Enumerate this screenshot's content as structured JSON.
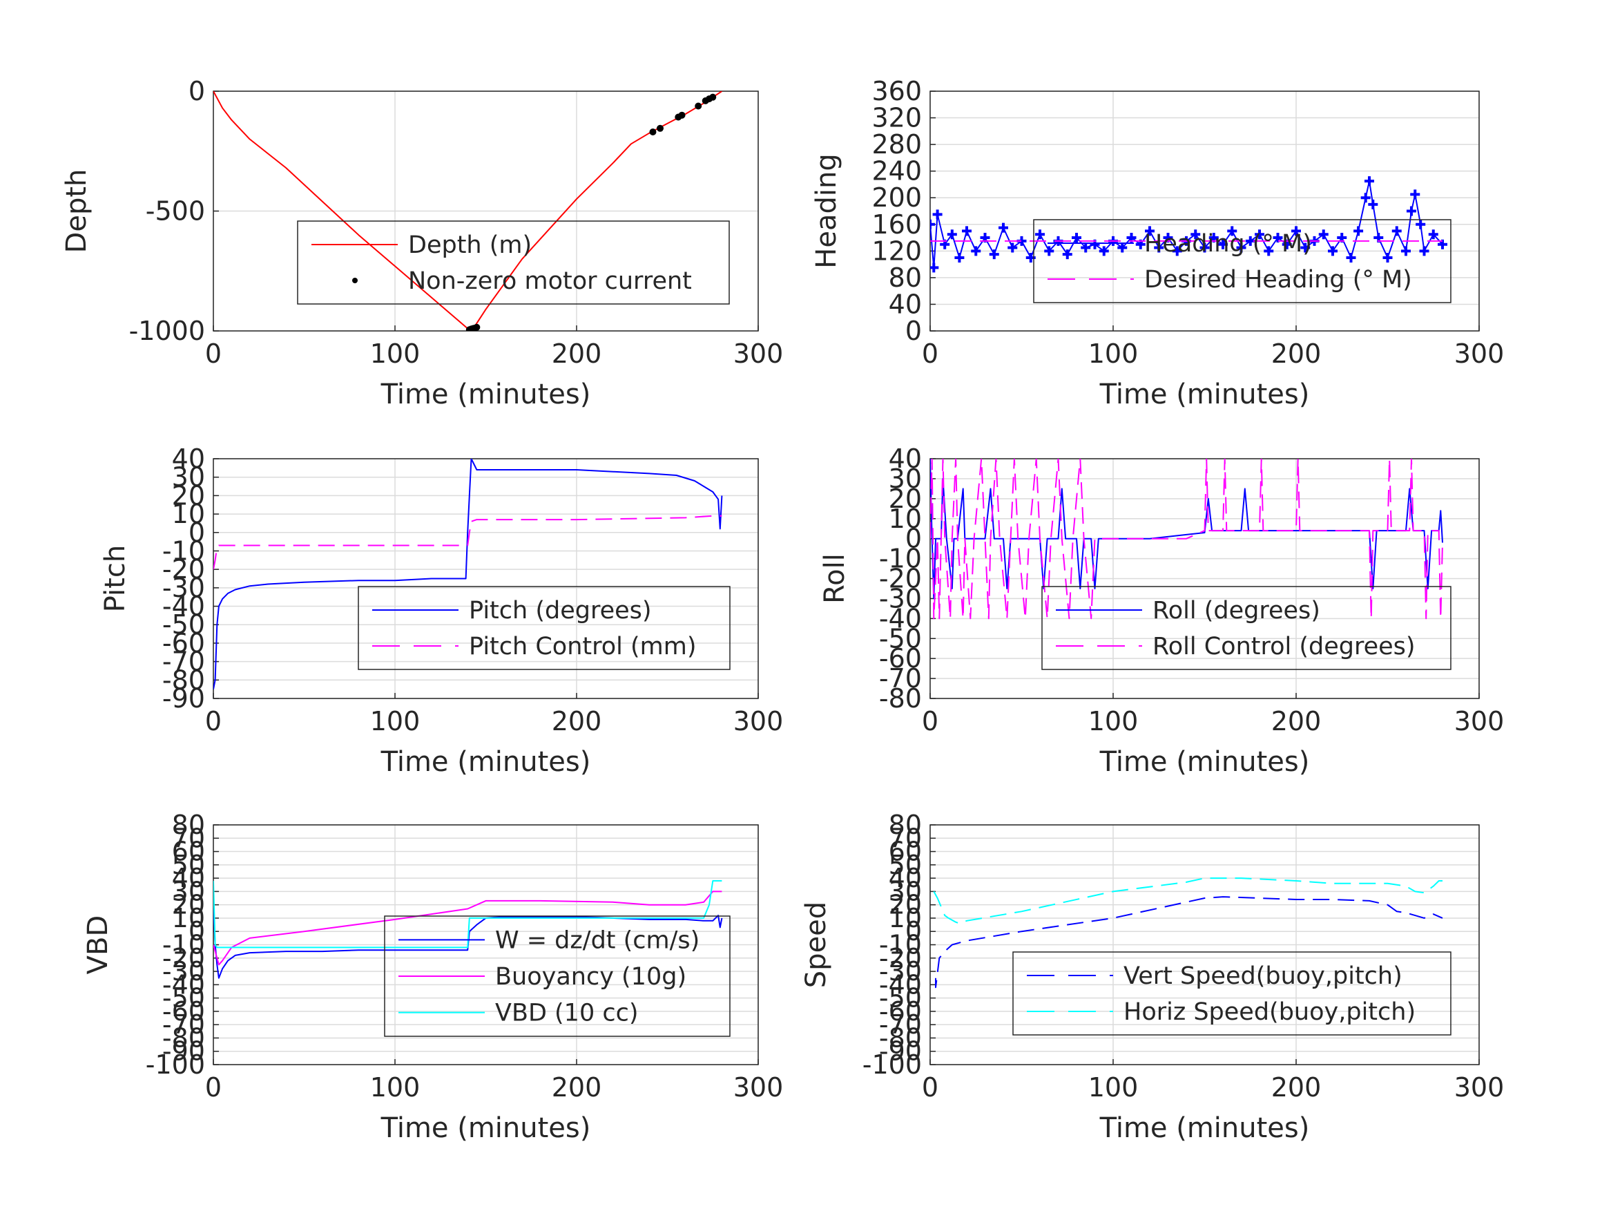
{
  "colors": {
    "red": "#ff0000",
    "magenta": "#ff00ff",
    "blue": "#0000ff",
    "cyan": "#00ffff",
    "black": "#000000",
    "grid": "#dbdbdb",
    "axis": "#262626"
  },
  "chart_data": [
    {
      "id": "depth",
      "type": "line",
      "xlabel": "Time (minutes)",
      "ylabel": "Depth",
      "xlim": [
        0,
        300
      ],
      "ylim": [
        -1000,
        0
      ],
      "xticks": [
        0,
        100,
        200,
        300
      ],
      "xticklabels": [
        "0",
        "100",
        "200",
        "300"
      ],
      "yticks": [
        0,
        -500,
        -1000
      ],
      "yticklabels": [
        "0",
        "-500",
        "-1000"
      ],
      "grid": true,
      "legend_position": "center-right",
      "series": [
        {
          "name": "Depth (m)",
          "style": "line",
          "color": "red",
          "x": [
            0,
            5,
            10,
            20,
            40,
            60,
            80,
            100,
            120,
            140,
            144,
            150,
            170,
            200,
            220,
            230,
            240,
            250,
            260,
            270,
            280
          ],
          "y": [
            0,
            -70,
            -120,
            -200,
            -320,
            -460,
            -600,
            -730,
            -860,
            -990,
            -980,
            -910,
            -700,
            -450,
            -300,
            -220,
            -175,
            -135,
            -95,
            -50,
            0
          ]
        },
        {
          "name": "Non-zero motor current",
          "style": "dots",
          "color": "black",
          "x": [
            141,
            142,
            143,
            144,
            145,
            242,
            246,
            256,
            258,
            267,
            271,
            273,
            275
          ],
          "y": [
            -995,
            -992,
            -990,
            -988,
            -985,
            -170,
            -155,
            -108,
            -100,
            -62,
            -40,
            -32,
            -25
          ]
        }
      ]
    },
    {
      "id": "heading",
      "type": "line",
      "xlabel": "Time (minutes)",
      "ylabel": "Heading",
      "xlim": [
        0,
        300
      ],
      "ylim": [
        0,
        360
      ],
      "xticks": [
        0,
        100,
        200,
        300
      ],
      "xticklabels": [
        "0",
        "100",
        "200",
        "300"
      ],
      "yticks": [
        0,
        40,
        80,
        120,
        160,
        200,
        240,
        280,
        320,
        360
      ],
      "yticklabels": [
        "0",
        "40",
        "80",
        "120",
        "160",
        "200",
        "240",
        "280",
        "320",
        "360"
      ],
      "grid": true,
      "legend_position": "center-right",
      "series": [
        {
          "name": "Heading (° M)",
          "style": "markers",
          "color": "blue",
          "x": [
            0,
            2,
            4,
            8,
            12,
            16,
            20,
            25,
            30,
            35,
            40,
            45,
            50,
            55,
            60,
            65,
            70,
            75,
            80,
            85,
            90,
            95,
            100,
            105,
            110,
            115,
            120,
            125,
            130,
            135,
            140,
            145,
            150,
            155,
            160,
            165,
            170,
            175,
            180,
            185,
            190,
            195,
            200,
            205,
            210,
            215,
            220,
            225,
            230,
            234,
            238,
            240,
            242,
            245,
            250,
            255,
            260,
            263,
            265,
            268,
            270,
            275,
            280
          ],
          "y": [
            160,
            95,
            175,
            130,
            145,
            110,
            150,
            120,
            140,
            115,
            155,
            125,
            135,
            110,
            145,
            120,
            135,
            115,
            140,
            125,
            130,
            120,
            135,
            125,
            140,
            130,
            150,
            125,
            140,
            120,
            135,
            145,
            125,
            140,
            130,
            150,
            125,
            135,
            145,
            120,
            140,
            130,
            150,
            125,
            135,
            145,
            120,
            140,
            110,
            150,
            200,
            225,
            190,
            140,
            110,
            150,
            120,
            180,
            205,
            160,
            120,
            145,
            130
          ]
        },
        {
          "name": "Desired Heading (° M)",
          "style": "dashed",
          "color": "magenta",
          "x": [
            0,
            280
          ],
          "y": [
            135,
            135
          ]
        }
      ]
    },
    {
      "id": "pitch",
      "type": "line",
      "xlabel": "Time (minutes)",
      "ylabel": "Pitch",
      "xlim": [
        0,
        300
      ],
      "ylim": [
        -90,
        40
      ],
      "xticks": [
        0,
        100,
        200,
        300
      ],
      "xticklabels": [
        "0",
        "100",
        "200",
        "300"
      ],
      "yticks": [
        40,
        30,
        20,
        10,
        0,
        -10,
        -20,
        -30,
        -40,
        -50,
        -60,
        -70,
        -80,
        -90
      ],
      "yticklabels": [
        "40",
        "30",
        "20",
        "10",
        "0",
        "-10",
        "-20",
        "-30",
        "-40",
        "-50",
        "-60",
        "-70",
        "-80",
        "-90"
      ],
      "grid": true,
      "legend_position": "lower-right",
      "series": [
        {
          "name": "Pitch (degrees)",
          "style": "line",
          "color": "blue",
          "x": [
            0,
            1,
            2,
            3,
            5,
            8,
            12,
            20,
            30,
            50,
            80,
            100,
            120,
            139,
            140,
            141,
            142,
            145,
            150,
            170,
            200,
            220,
            240,
            255,
            265,
            270,
            275,
            278,
            279,
            280
          ],
          "y": [
            -85,
            -80,
            -50,
            -40,
            -36,
            -33,
            -31,
            -29,
            -28,
            -27,
            -26,
            -26,
            -25,
            -25,
            0,
            20,
            40,
            34,
            34,
            34,
            34,
            33,
            32,
            31,
            28,
            25,
            22,
            18,
            2,
            20
          ]
        },
        {
          "name": "Pitch Control (mm)",
          "style": "dashed",
          "color": "magenta",
          "x": [
            0,
            1,
            2,
            3,
            5,
            140,
            141,
            142,
            145,
            200,
            260,
            275,
            280
          ],
          "y": [
            -20,
            -15,
            -8,
            -7,
            -7,
            -7,
            0,
            6,
            7,
            7,
            8,
            9,
            9
          ]
        }
      ]
    },
    {
      "id": "roll",
      "type": "line",
      "xlabel": "Time (minutes)",
      "ylabel": "Roll",
      "xlim": [
        0,
        300
      ],
      "ylim": [
        -80,
        40
      ],
      "xticks": [
        0,
        100,
        200,
        300
      ],
      "xticklabels": [
        "0",
        "100",
        "200",
        "300"
      ],
      "yticks": [
        40,
        30,
        20,
        10,
        0,
        -10,
        -20,
        -30,
        -40,
        -50,
        -60,
        -70,
        -80
      ],
      "yticklabels": [
        "40",
        "30",
        "20",
        "10",
        "0",
        "-10",
        "-20",
        "-30",
        "-40",
        "-50",
        "-60",
        "-70",
        "-80"
      ],
      "grid": true,
      "legend_position": "lower-right",
      "series": [
        {
          "name": "Roll (degrees)",
          "style": "line",
          "color": "blue",
          "x": [
            0,
            1,
            2,
            3,
            6,
            7,
            9,
            12,
            13,
            15,
            18,
            19,
            21,
            25,
            30,
            33,
            35,
            40,
            42,
            44,
            50,
            55,
            60,
            62,
            64,
            70,
            72,
            74,
            80,
            82,
            84,
            88,
            90,
            92,
            100,
            120,
            140,
            150,
            152,
            154,
            170,
            172,
            174,
            200,
            230,
            240,
            242,
            244,
            250,
            260,
            262,
            264,
            270,
            272,
            274,
            278,
            279,
            280
          ],
          "y": [
            40,
            0,
            -30,
            0,
            0,
            30,
            0,
            -25,
            0,
            0,
            25,
            0,
            0,
            0,
            0,
            25,
            0,
            0,
            -25,
            0,
            0,
            0,
            0,
            -25,
            0,
            0,
            25,
            0,
            0,
            -25,
            0,
            0,
            -25,
            0,
            0,
            0,
            2,
            3,
            20,
            4,
            4,
            25,
            4,
            4,
            4,
            4,
            -25,
            4,
            4,
            4,
            25,
            4,
            4,
            -25,
            4,
            4,
            14,
            -2
          ]
        },
        {
          "name": "Roll Control (degrees)",
          "style": "dashed",
          "color": "magenta",
          "x": [
            0,
            1,
            2,
            4,
            5,
            7,
            8,
            11,
            12,
            14,
            15,
            18,
            19,
            22,
            24,
            28,
            30,
            32,
            33,
            36,
            38,
            42,
            44,
            46,
            48,
            52,
            54,
            58,
            60,
            64,
            66,
            70,
            72,
            76,
            78,
            82,
            84,
            88,
            90,
            92,
            100,
            120,
            140,
            150,
            151,
            152,
            160,
            161,
            162,
            180,
            181,
            182,
            200,
            201,
            202,
            230,
            240,
            241,
            242,
            250,
            251,
            252,
            262,
            263,
            264,
            270,
            271,
            272,
            278,
            279,
            280
          ],
          "y": [
            0,
            40,
            -40,
            0,
            -40,
            40,
            0,
            -40,
            0,
            40,
            0,
            -40,
            0,
            -40,
            0,
            40,
            0,
            -40,
            0,
            40,
            0,
            -40,
            0,
            40,
            0,
            -40,
            0,
            40,
            0,
            -40,
            0,
            40,
            0,
            -40,
            0,
            40,
            0,
            -40,
            0,
            0,
            0,
            0,
            0,
            4,
            40,
            4,
            4,
            40,
            4,
            4,
            40,
            4,
            4,
            40,
            4,
            4,
            4,
            -40,
            4,
            4,
            40,
            4,
            4,
            40,
            4,
            4,
            -40,
            4,
            4,
            -40,
            -2
          ]
        }
      ]
    },
    {
      "id": "vbd",
      "type": "line",
      "xlabel": "Time (minutes)",
      "ylabel": "VBD",
      "xlim": [
        0,
        300
      ],
      "ylim": [
        -100,
        80
      ],
      "xticks": [
        0,
        100,
        200,
        300
      ],
      "xticklabels": [
        "0",
        "100",
        "200",
        "300"
      ],
      "yticks": [
        80,
        70,
        60,
        50,
        40,
        30,
        20,
        10,
        0,
        -10,
        -20,
        -30,
        -40,
        -50,
        -60,
        -70,
        -80,
        -90,
        -100
      ],
      "yticklabels": [
        "80",
        "70",
        "60",
        "50",
        "40",
        "30",
        "20",
        "10",
        "0",
        "-10",
        "-20",
        "-30",
        "-40",
        "-50",
        "-60",
        "-70",
        "-80",
        "-90",
        "-100"
      ],
      "grid": true,
      "legend_position": "lower-right",
      "series": [
        {
          "name": "W = dz/dt (cm/s)",
          "style": "line",
          "color": "blue",
          "x": [
            0,
            1,
            2,
            3,
            5,
            8,
            12,
            20,
            40,
            60,
            80,
            100,
            120,
            139,
            140,
            141,
            145,
            150,
            160,
            180,
            200,
            220,
            240,
            260,
            270,
            275,
            278,
            279,
            280
          ],
          "y": [
            20,
            -10,
            -25,
            -35,
            -28,
            -22,
            -18,
            -16,
            -15,
            -15,
            -14,
            -14,
            -14,
            -14,
            -14,
            0,
            5,
            10,
            11,
            11,
            11,
            10,
            9,
            9,
            8,
            8,
            12,
            3,
            10
          ]
        },
        {
          "name": "Buoyancy (10g)",
          "style": "line",
          "color": "magenta",
          "x": [
            0,
            2,
            3,
            5,
            10,
            20,
            50,
            100,
            140,
            145,
            150,
            180,
            220,
            240,
            260,
            270,
            275,
            280
          ],
          "y": [
            -10,
            -20,
            -25,
            -22,
            -12,
            -5,
            0,
            9,
            17,
            20,
            23,
            23,
            22,
            20,
            20,
            22,
            30,
            30
          ]
        },
        {
          "name": "VBD (10 cc)",
          "style": "line",
          "color": "cyan",
          "x": [
            0,
            1,
            2,
            5,
            50,
            100,
            140,
            141,
            150,
            200,
            260,
            270,
            273,
            275,
            280
          ],
          "y": [
            38,
            -10,
            -12,
            -12,
            -12,
            -12,
            -12,
            10,
            10,
            10,
            10,
            10,
            20,
            38,
            38
          ]
        }
      ]
    },
    {
      "id": "speed",
      "type": "line",
      "xlabel": "Time (minutes)",
      "ylabel": "Speed",
      "xlim": [
        0,
        300
      ],
      "ylim": [
        -100,
        80
      ],
      "xticks": [
        0,
        100,
        200,
        300
      ],
      "xticklabels": [
        "0",
        "100",
        "200",
        "300"
      ],
      "yticks": [
        80,
        70,
        60,
        50,
        40,
        30,
        20,
        10,
        0,
        -10,
        -20,
        -30,
        -40,
        -50,
        -60,
        -70,
        -80,
        -90,
        -100
      ],
      "yticklabels": [
        "80",
        "70",
        "60",
        "50",
        "40",
        "30",
        "20",
        "10",
        "0",
        "-10",
        "-20",
        "-30",
        "-40",
        "-50",
        "-60",
        "-70",
        "-80",
        "-90",
        "-100"
      ],
      "grid": true,
      "legend_position": "lower-right",
      "series": [
        {
          "name": "Vert Speed(buoy,pitch)",
          "style": "dashed",
          "color": "blue",
          "x": [
            3,
            3,
            5,
            8,
            12,
            20,
            50,
            100,
            140,
            150,
            160,
            180,
            200,
            220,
            240,
            250,
            255,
            260,
            265,
            270,
            275,
            280
          ],
          "y": [
            -35,
            -42,
            -20,
            -15,
            -10,
            -7,
            0,
            10,
            22,
            25,
            26,
            25,
            24,
            24,
            23,
            20,
            15,
            14,
            12,
            10,
            13,
            10
          ]
        },
        {
          "name": "Horiz Speed(buoy,pitch)",
          "style": "dashed",
          "color": "cyan",
          "x": [
            2,
            4,
            8,
            10,
            14,
            16,
            20,
            50,
            100,
            140,
            150,
            170,
            200,
            220,
            250,
            260,
            265,
            270,
            275,
            278,
            280
          ],
          "y": [
            30,
            25,
            12,
            10,
            7,
            6,
            8,
            15,
            30,
            37,
            40,
            40,
            38,
            36,
            36,
            34,
            30,
            29,
            34,
            38,
            38
          ]
        }
      ]
    }
  ]
}
